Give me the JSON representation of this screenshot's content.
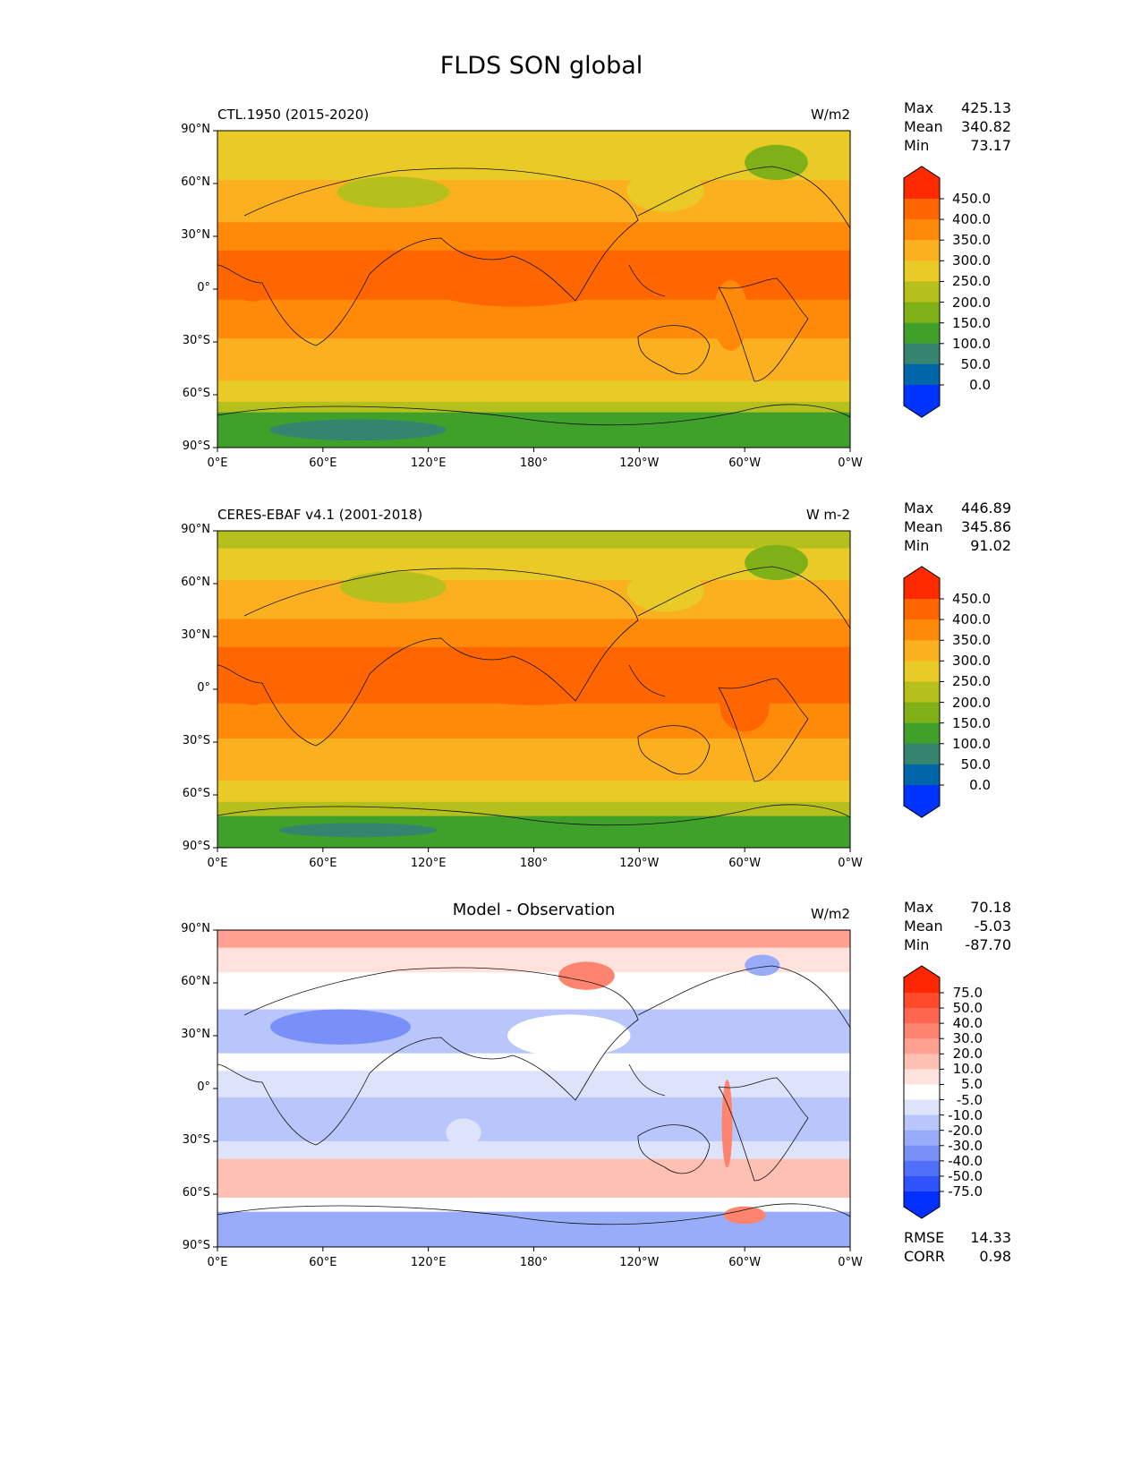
{
  "title": "FLDS SON global",
  "axes": {
    "lat_ticks": [
      "90°N",
      "60°N",
      "30°N",
      "0°",
      "30°S",
      "60°S",
      "90°S"
    ],
    "lon_ticks": [
      "0°E",
      "60°E",
      "120°E",
      "180°",
      "120°W",
      "60°W",
      "0°W"
    ]
  },
  "panels": [
    {
      "title": "CTL.1950 (2015-2020)",
      "units": "W/m2",
      "stats": [
        {
          "k": "Max",
          "v": "425.13"
        },
        {
          "k": "Mean",
          "v": "340.82"
        },
        {
          "k": "Min",
          "v": "73.17"
        }
      ],
      "colorbar": {
        "labels": [
          "450.0",
          "400.0",
          "350.0",
          "300.0",
          "250.0",
          "200.0",
          "150.0",
          "100.0",
          "50.0",
          "0.0"
        ],
        "colors": [
          "#ff2a00",
          "#ff6600",
          "#ff8a0a",
          "#fbb020",
          "#e9ca26",
          "#b5c01c",
          "#7fb017",
          "#3fa02a",
          "#348470",
          "#0066aa",
          "#0033ff"
        ]
      }
    },
    {
      "title": "CERES-EBAF v4.1 (2001-2018)",
      "units": "W m-2",
      "stats": [
        {
          "k": "Max",
          "v": "446.89"
        },
        {
          "k": "Mean",
          "v": "345.86"
        },
        {
          "k": "Min",
          "v": "91.02"
        }
      ],
      "colorbar": {
        "labels": [
          "450.0",
          "400.0",
          "350.0",
          "300.0",
          "250.0",
          "200.0",
          "150.0",
          "100.0",
          "50.0",
          "0.0"
        ],
        "colors": [
          "#ff2a00",
          "#ff6600",
          "#ff8a0a",
          "#fbb020",
          "#e9ca26",
          "#b5c01c",
          "#7fb017",
          "#3fa02a",
          "#348470",
          "#0066aa",
          "#0033ff"
        ]
      }
    },
    {
      "title": "Model - Observation",
      "units": "W/m2",
      "stats": [
        {
          "k": "Max",
          "v": "70.18"
        },
        {
          "k": "Mean",
          "v": "-5.03"
        },
        {
          "k": "Min",
          "v": "-87.70"
        }
      ],
      "colorbar": {
        "labels": [
          "75.0",
          "50.0",
          "40.0",
          "30.0",
          "20.0",
          "10.0",
          "5.0",
          "-5.0",
          "-10.0",
          "-20.0",
          "-30.0",
          "-40.0",
          "-50.0",
          "-75.0"
        ],
        "colors": [
          "#ff2600",
          "#ff4a2b",
          "#ff6650",
          "#ff8470",
          "#ffa090",
          "#ffc0b4",
          "#ffe2dc",
          "#ffffff",
          "#dde3fb",
          "#b8c6fb",
          "#98acf9",
          "#7890f8",
          "#5070fa",
          "#2e52fb",
          "#0030ff"
        ]
      },
      "metrics": [
        {
          "k": "RMSE",
          "v": "14.33"
        },
        {
          "k": "CORR",
          "v": "0.98"
        }
      ]
    }
  ]
}
